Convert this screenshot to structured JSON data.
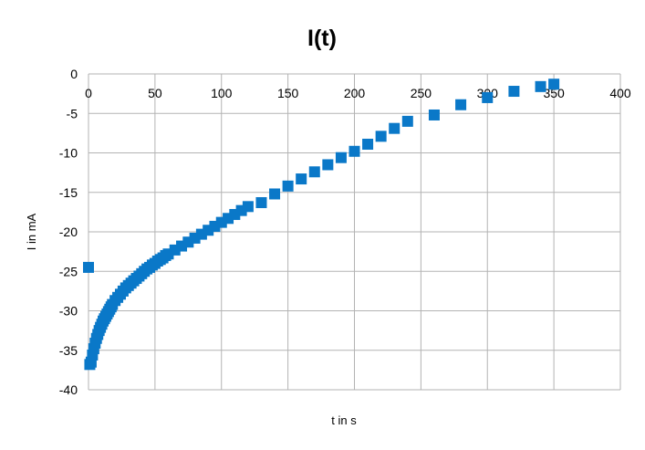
{
  "chart_data": {
    "type": "scatter",
    "title": "I(t)",
    "xlabel": "t in s",
    "ylabel": "I in mA",
    "xlim": [
      0,
      400
    ],
    "ylim": [
      -40,
      0
    ],
    "xticks": [
      0,
      50,
      100,
      150,
      200,
      250,
      300,
      350,
      400
    ],
    "yticks": [
      0,
      -5,
      -10,
      -15,
      -20,
      -25,
      -30,
      -35,
      -40
    ],
    "grid": true,
    "legend": "none",
    "marker_color": "#0a78c8",
    "marker": "square",
    "series": [
      {
        "x": [
          0,
          1,
          2,
          3,
          4,
          5,
          6,
          7,
          8,
          9,
          10,
          11,
          12,
          13,
          14,
          15,
          16,
          17,
          18,
          20,
          22,
          24,
          26,
          28,
          30,
          32,
          34,
          36,
          38,
          40,
          42,
          44,
          46,
          48,
          50,
          52,
          54,
          56,
          58,
          60,
          65,
          70,
          75,
          80,
          85,
          90,
          95,
          100,
          105,
          110,
          115,
          120,
          130,
          140,
          150,
          160,
          170,
          180,
          190,
          200,
          210,
          220,
          230,
          240,
          260,
          280,
          300,
          320,
          340,
          350
        ],
        "y": [
          -24.5,
          -36.8,
          -36.5,
          -35.6,
          -34.8,
          -34.1,
          -33.5,
          -33.0,
          -32.5,
          -32.1,
          -31.7,
          -31.3,
          -31.0,
          -30.7,
          -30.4,
          -30.1,
          -29.8,
          -29.5,
          -29.2,
          -28.7,
          -28.3,
          -27.9,
          -27.5,
          -27.1,
          -26.8,
          -26.5,
          -26.2,
          -25.9,
          -25.6,
          -25.3,
          -25.0,
          -24.7,
          -24.5,
          -24.2,
          -24.0,
          -23.7,
          -23.5,
          -23.3,
          -23.0,
          -22.8,
          -22.3,
          -21.8,
          -21.3,
          -20.8,
          -20.3,
          -19.8,
          -19.3,
          -18.8,
          -18.3,
          -17.8,
          -17.3,
          -16.8,
          -16.3,
          -15.2,
          -14.2,
          -13.3,
          -12.4,
          -11.5,
          -10.6,
          -9.8,
          -8.9,
          -7.9,
          -6.9,
          -6.0,
          -5.2,
          -3.9,
          -3.0,
          -2.2,
          -1.6,
          -1.3
        ]
      }
    ]
  }
}
